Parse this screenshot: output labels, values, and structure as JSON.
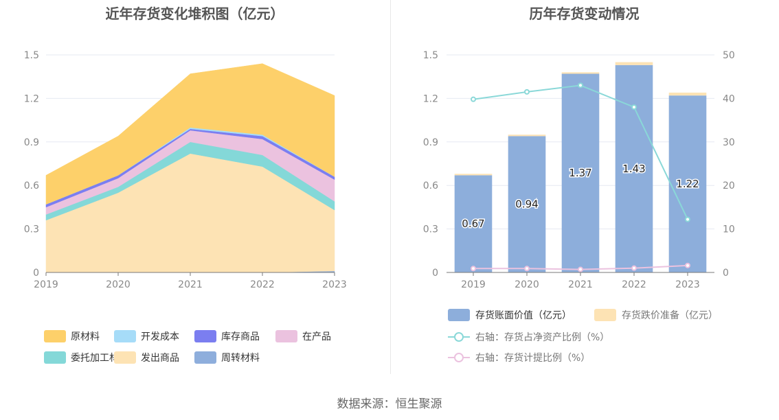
{
  "titles": {
    "left": "近年存货变化堆积图（亿元）",
    "right": "历年存货变动情况"
  },
  "source": "数据来源：恒生聚源",
  "chart_data": [
    {
      "type": "area",
      "title": "近年存货变化堆积图（亿元）",
      "stacked": true,
      "x": [
        "2019",
        "2020",
        "2021",
        "2022",
        "2023"
      ],
      "ylim": [
        0,
        1.5
      ],
      "yticks": [
        "0",
        "0.3",
        "0.6",
        "0.9",
        "1.2",
        "1.5"
      ],
      "grid": true,
      "legend_position": "bottom",
      "series": [
        {
          "name": "周转材料",
          "color": "#8eaedc",
          "values": [
            0,
            0,
            0,
            0,
            0.01
          ]
        },
        {
          "name": "发出商品",
          "color": "#fde3b4",
          "values": [
            0.36,
            0.55,
            0.82,
            0.73,
            0.42
          ]
        },
        {
          "name": "委托加工材料",
          "color": "#84d8d8",
          "values": [
            0.04,
            0.04,
            0.08,
            0.08,
            0.06
          ]
        },
        {
          "name": "在产品",
          "color": "#ebc2df",
          "values": [
            0.05,
            0.06,
            0.08,
            0.11,
            0.15
          ]
        },
        {
          "name": "库存商品",
          "color": "#7b7ef0",
          "values": [
            0.02,
            0.02,
            0.01,
            0.02,
            0.02
          ]
        },
        {
          "name": "开发成本",
          "color": "#a6dcf8",
          "values": [
            0,
            0,
            0.01,
            0.01,
            0
          ]
        },
        {
          "name": "原材料",
          "color": "#fdd06a",
          "values": [
            0.2,
            0.27,
            0.37,
            0.49,
            0.56
          ]
        }
      ],
      "legend_order": [
        "原材料",
        "开发成本",
        "库存商品",
        "在产品",
        "委托加工材料",
        "发出商品",
        "周转材料"
      ]
    },
    {
      "type": "bar",
      "title": "历年存货变动情况",
      "stacked": true,
      "categories": [
        "2019",
        "2020",
        "2021",
        "2022",
        "2023"
      ],
      "ylim": [
        0,
        1.5
      ],
      "yticks": [
        "0",
        "0.3",
        "0.6",
        "0.9",
        "1.2",
        "1.5"
      ],
      "y2lim": [
        0,
        50
      ],
      "y2ticks": [
        "0",
        "10",
        "20",
        "30",
        "40",
        "50"
      ],
      "grid": true,
      "legend_position": "bottom",
      "series": [
        {
          "name": "存货账面价值（亿元）",
          "kind": "bar",
          "axis": "left",
          "color": "#8daedb",
          "values": [
            0.67,
            0.94,
            1.37,
            1.43,
            1.22
          ],
          "labels": [
            "0.67",
            "0.94",
            "1.37",
            "1.43",
            "1.22"
          ]
        },
        {
          "name": "存货跌价准备（亿元）",
          "kind": "bar",
          "axis": "left",
          "color": "#fde3b4",
          "values": [
            0.01,
            0.01,
            0.01,
            0.02,
            0.02
          ]
        },
        {
          "name": "右轴：存货占净资产比例（%）",
          "kind": "line",
          "axis": "right",
          "color": "#8ad8d8",
          "values": [
            39.8,
            41.5,
            43.0,
            38.0,
            12.2
          ]
        },
        {
          "name": "右轴：存货计提比例（%）",
          "kind": "line",
          "axis": "right",
          "color": "#ebc2df",
          "values": [
            0.9,
            0.9,
            0.7,
            1.0,
            1.6
          ]
        }
      ]
    }
  ]
}
